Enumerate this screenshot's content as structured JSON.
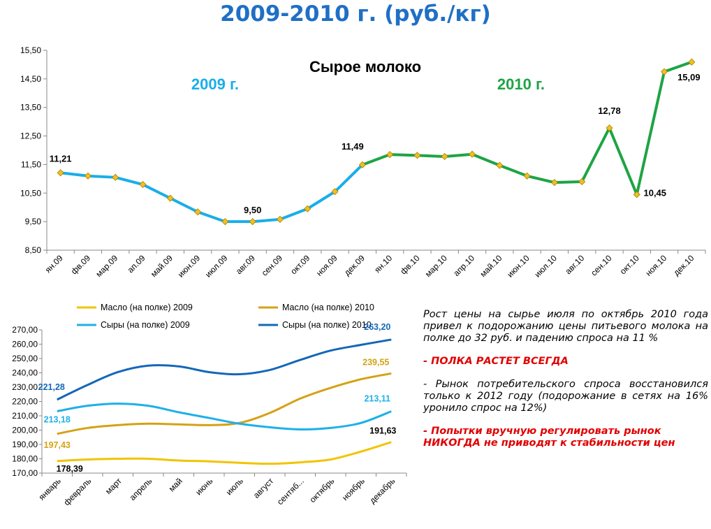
{
  "page": {
    "title": "2009-2010 г. (руб./кг)"
  },
  "colors": {
    "title": "#1f6fc5",
    "line_2009": "#1aaee8",
    "line_2010": "#1ea444",
    "marker": "#f0c020",
    "butter_2009": "#f2c400",
    "butter_2010": "#d4a215",
    "cheese_2009": "#1eb0e8",
    "cheese_2010": "#1467b8",
    "alert_text": "#e00000"
  },
  "notes": {
    "p1": "Рост цены на сырье  июля по октябрь 2010 года привел к подорожанию цены питьевого молока на полке до 32 руб. и падению спроса на 11 %",
    "p2": "- ПОЛКА РАСТЕТ ВСЕГДА",
    "p3": "- Рынок потребительского спроса восстановился только к 2012 году (подорожание в сетях на 16% уронило спрос на 12%)",
    "p4": "- Попытки вручную регулировать рынок НИКОГДА не приводят к стабильности цен"
  },
  "chart_data": [
    {
      "type": "line",
      "title": "Сырое молоко",
      "annotations": [
        "2009 г.",
        "2010 г."
      ],
      "categories": [
        "ян.09",
        "фв.09",
        "мар.09",
        "ап.09",
        "май.09",
        "июн.09",
        "июл.09",
        "авг.09",
        "сен.09",
        "окт.09",
        "ноя.09",
        "дек.09",
        "ян.10",
        "фв.10",
        "мар.10",
        "апр.10",
        "май.10",
        "июн.10",
        "июл.10",
        "авг.10",
        "сен.10",
        "окт.10",
        "ноя.10",
        "дек.10"
      ],
      "values": [
        11.21,
        11.1,
        11.05,
        10.8,
        10.32,
        9.84,
        9.5,
        9.5,
        9.58,
        9.95,
        10.55,
        11.49,
        11.85,
        11.82,
        11.78,
        11.86,
        11.47,
        11.1,
        10.87,
        10.9,
        12.78,
        10.45,
        14.75,
        15.09
      ],
      "data_labels": {
        "0": "11,21",
        "7": "9,50",
        "11": "11,49",
        "20": "12,78",
        "21": "10,45",
        "23": "15,09"
      },
      "ylim": [
        8.5,
        15.5
      ],
      "yticks": [
        "8,50",
        "9,50",
        "10,50",
        "11,50",
        "12,50",
        "13,50",
        "14,50",
        "15,50"
      ],
      "grid": false,
      "legend": "none"
    },
    {
      "type": "line",
      "categories": [
        "январь",
        "февраль",
        "март",
        "апрель",
        "май",
        "июнь",
        "июль",
        "август",
        "сентяб...",
        "октябрь",
        "ноябрь",
        "декабрь"
      ],
      "ylim": [
        170,
        270
      ],
      "yticks": [
        "170,00",
        "180,00",
        "190,00",
        "200,00",
        "210,00",
        "220,00",
        "230,00",
        "240,00",
        "250,00",
        "260,00",
        "270,00"
      ],
      "legend": "top",
      "series": [
        {
          "name": "Масло (на полке) 2009",
          "values": [
            178.39,
            179.5,
            180.0,
            180.0,
            178.8,
            178.2,
            177.2,
            176.5,
            177.5,
            179.5,
            185.0,
            191.63
          ]
        },
        {
          "name": "Масло (на полке) 2010",
          "values": [
            197.43,
            201.5,
            203.5,
            204.5,
            204.0,
            203.5,
            205.0,
            212.0,
            222.0,
            229.5,
            235.5,
            239.55
          ]
        },
        {
          "name": "Сыры (на полке) 2009",
          "values": [
            213.18,
            217.0,
            218.5,
            217.0,
            212.5,
            208.5,
            204.5,
            202.0,
            200.5,
            201.5,
            205.0,
            213.11
          ]
        },
        {
          "name": "Сыры (на полке) 2010",
          "values": [
            221.28,
            231.5,
            240.5,
            245.0,
            244.5,
            240.5,
            239.0,
            242.0,
            249.0,
            255.5,
            259.5,
            263.2
          ]
        }
      ],
      "data_labels": [
        {
          "series": 3,
          "index": 0,
          "text": "221,28"
        },
        {
          "series": 3,
          "index": 11,
          "text": "263,20"
        },
        {
          "series": 1,
          "index": 11,
          "text": "239,55"
        },
        {
          "series": 2,
          "index": 0,
          "text": "213,18"
        },
        {
          "series": 2,
          "index": 11,
          "text": "213,11"
        },
        {
          "series": 1,
          "index": 0,
          "text": "197,43"
        },
        {
          "series": 0,
          "index": 0,
          "text": "178,39"
        },
        {
          "series": 0,
          "index": 11,
          "text": "191,63"
        }
      ]
    }
  ]
}
